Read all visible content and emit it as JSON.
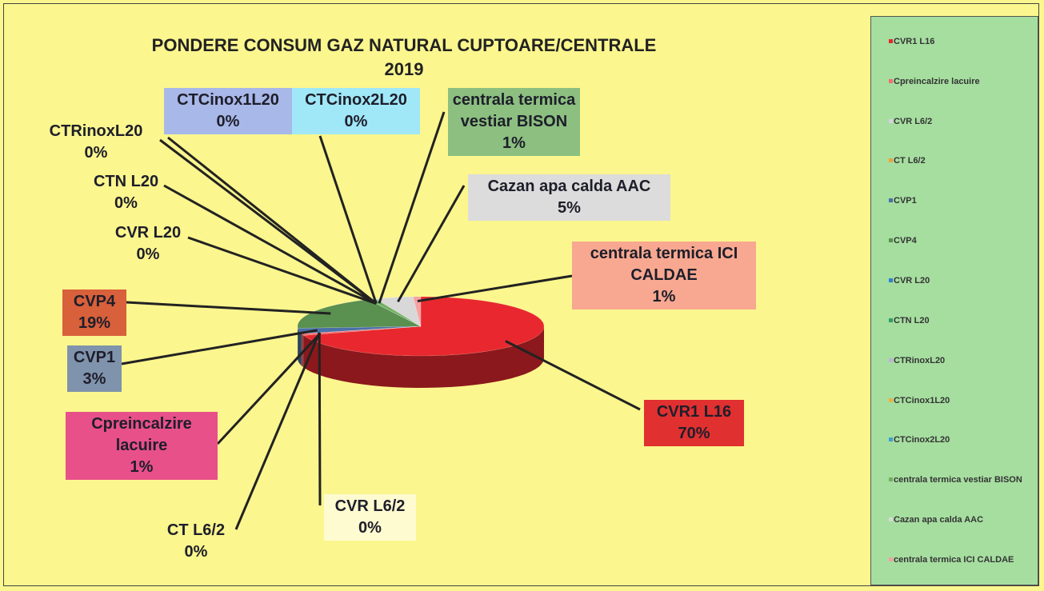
{
  "chart_data": {
    "type": "pie3d",
    "title": "PONDERE CONSUM GAZ NATURAL CUPTOARE/CENTRALE",
    "subtitle": "2019",
    "categories": [
      "CVR1 L16",
      "Cpreincalzire lacuire",
      "CVR L6/2",
      "CT L6/2",
      "CVP1",
      "CVP4",
      "CVR L20",
      "CTN L20",
      "CTRinoxL20",
      "CTCinox1L20",
      "CTCinox2L20",
      "centrala termica vestiar BISON",
      "Cazan apa calda AAC",
      "centrala termica ICI CALDAE"
    ],
    "values": [
      70,
      1,
      0,
      0,
      3,
      19,
      0,
      0,
      0,
      0,
      0,
      1,
      5,
      1
    ],
    "value_labels": [
      "70%",
      "1%",
      "0%",
      "0%",
      "3%",
      "19%",
      "0%",
      "0%",
      "0%",
      "0%",
      "0%",
      "1%",
      "5%",
      "1%"
    ],
    "colors": [
      "#e8282e",
      "#f07070",
      "#d8d0e0",
      "#f0a040",
      "#4a70a8",
      "#5a9050",
      "#3080d0",
      "#30a060",
      "#c0b0d8",
      "#f0b040",
      "#40a0d0",
      "#70b060",
      "#d8d8d8",
      "#f8a0a0"
    ],
    "label_colors": [
      "#e03030",
      "#e8508a",
      "#fffbd0",
      null,
      "#7f93ac",
      "#d8603a",
      null,
      null,
      null,
      "#a8b8e8",
      "#a0e8f8",
      "#8cbf80",
      "#dcdcdc",
      "#f8a890"
    ],
    "legend": "right"
  }
}
